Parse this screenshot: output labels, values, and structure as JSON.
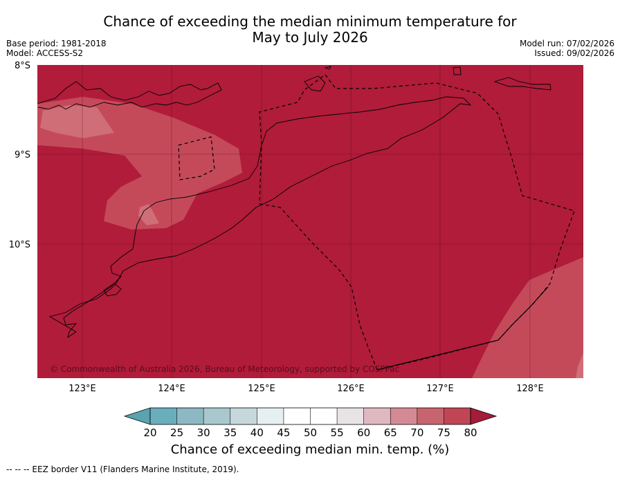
{
  "title": {
    "line1": "Chance of exceeding the median minimum temperature for",
    "line2": "May to July 2026"
  },
  "meta": {
    "base_period": "Base period: 1981-2018",
    "model": "Model: ACCESS-S2",
    "model_run": "Model run: 07/02/2026",
    "issued": "Issued: 09/02/2026"
  },
  "map": {
    "lat_labels": [
      "8°S",
      "9°S",
      "10°S"
    ],
    "lon_labels": [
      "123°E",
      "124°E",
      "125°E",
      "126°E",
      "127°E",
      "128°E"
    ],
    "copyright": "© Commonwealth of Australia 2026, Bureau of Meteorology, supported by COSPPac",
    "colors": {
      "above_80": "#b01c3a",
      "band_75_80": "#c44a5a",
      "band_70_75": "#d06e78",
      "coast": "#000000"
    }
  },
  "colorbar": {
    "ticks": [
      "20",
      "25",
      "30",
      "35",
      "40",
      "45",
      "50",
      "55",
      "60",
      "65",
      "70",
      "75",
      "80"
    ],
    "colors": [
      "#5aa4b0",
      "#6aaebb",
      "#8bb8c2",
      "#a8c8cd",
      "#c6d8dc",
      "#e6eff1",
      "#ffffff",
      "#ffffff",
      "#e8e4e5",
      "#e0b8c0",
      "#d48a94",
      "#c86470",
      "#c04656",
      "#a51c38"
    ],
    "label": "Chance of exceeding median min. temp. (%)"
  },
  "footer": "--  --  -- EEZ border V11 (Flanders Marine Institute, 2019)."
}
